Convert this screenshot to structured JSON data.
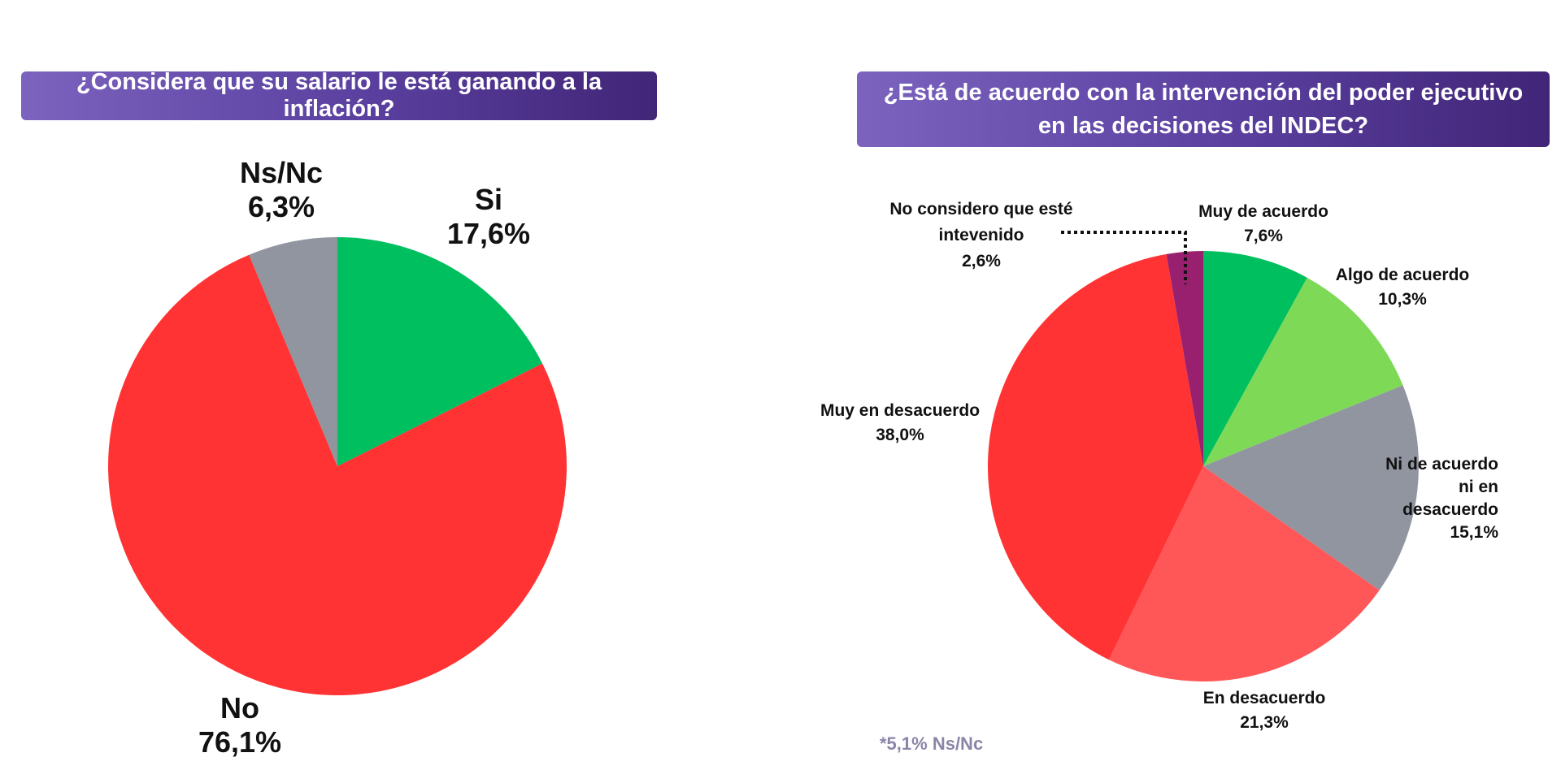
{
  "chart_data": [
    {
      "type": "pie",
      "title": "¿Considera que su salario le está ganando a la inflación?",
      "slices": [
        {
          "label": "Si",
          "value": 17.6,
          "value_label": "17,6%",
          "color": "#00bf5f"
        },
        {
          "label": "No",
          "value": 76.1,
          "value_label": "76,1%",
          "color": "#ff3333"
        },
        {
          "label": "Ns/Nc",
          "value": 6.3,
          "value_label": "6,3%",
          "color": "#9095a0"
        }
      ]
    },
    {
      "type": "pie",
      "title": "¿Está de acuerdo con la intervención del poder ejecutivo en las decisiones del INDEC?",
      "slices": [
        {
          "label": "Muy de acuerdo",
          "value": 7.6,
          "value_label": "7,6%",
          "color": "#00bf5f"
        },
        {
          "label": "Algo de acuerdo",
          "value": 10.3,
          "value_label": "10,3%",
          "color": "#7ed957"
        },
        {
          "label": "Ni de acuerdo ni en desacuerdo",
          "value": 15.1,
          "value_label": "15,1%",
          "color": "#9095a0"
        },
        {
          "label": "En desacuerdo",
          "value": 21.3,
          "value_label": "21,3%",
          "color": "#ff5757"
        },
        {
          "label": "Muy en desacuerdo",
          "value": 38.0,
          "value_label": "38,0%",
          "color": "#ff3333"
        },
        {
          "label": "No considero que esté intevenido",
          "value": 2.6,
          "value_label": "2,6%",
          "color": "#98206e"
        }
      ],
      "footnote": "*5,1% Ns/Nc"
    }
  ]
}
